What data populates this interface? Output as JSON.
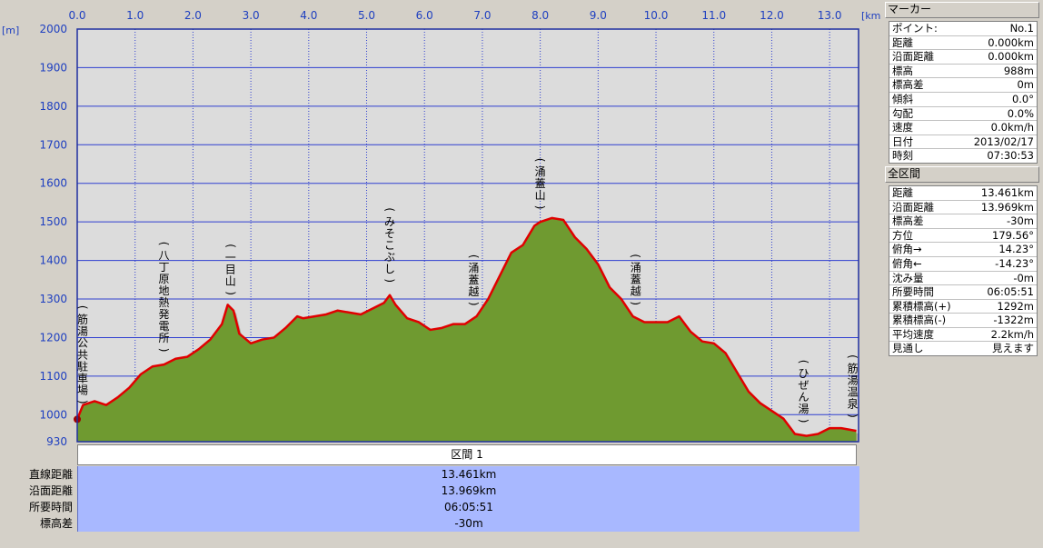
{
  "chart_data": {
    "type": "area",
    "x_unit": "[km]",
    "y_unit": "[m]",
    "xlim": [
      0,
      13.5
    ],
    "ylim": [
      930,
      2000
    ],
    "x_ticks": [
      0,
      1,
      2,
      3,
      4,
      5,
      6,
      7,
      8,
      9,
      10,
      11,
      12,
      13
    ],
    "x_tick_labels": [
      "0.0",
      "1.0",
      "2.0",
      "3.0",
      "4.0",
      "5.0",
      "6.0",
      "7.0",
      "8.0",
      "9.0",
      "10.0",
      "11.0",
      "12.0",
      "13.0"
    ],
    "y_ticks": [
      930,
      1000,
      1100,
      1200,
      1300,
      1400,
      1500,
      1600,
      1700,
      1800,
      1900,
      2000
    ],
    "y_tick_labels": [
      "930",
      "1000",
      "1100",
      "1200",
      "1300",
      "1400",
      "1500",
      "1600",
      "1700",
      "1800",
      "1900",
      "2000"
    ],
    "grid": true,
    "series": [
      {
        "color": "#e00000",
        "x": [
          0,
          0.1,
          0.3,
          0.5,
          0.7,
          0.9,
          1.1,
          1.3,
          1.5,
          1.7,
          1.9,
          2.1,
          2.3,
          2.5,
          2.6,
          2.7,
          2.8,
          3.0,
          3.2,
          3.4,
          3.6,
          3.8,
          3.9,
          4.1,
          4.3,
          4.5,
          4.7,
          4.9,
          5.1,
          5.3,
          5.4,
          5.5,
          5.7,
          5.9,
          6.1,
          6.3,
          6.5,
          6.7,
          6.9,
          7.1,
          7.3,
          7.5,
          7.7,
          7.9,
          8.0,
          8.2,
          8.4,
          8.6,
          8.8,
          9.0,
          9.2,
          9.4,
          9.6,
          9.8,
          10.0,
          10.2,
          10.4,
          10.6,
          10.8,
          11.0,
          11.2,
          11.4,
          11.6,
          11.8,
          12.0,
          12.2,
          12.4,
          12.6,
          12.8,
          13.0,
          13.2,
          13.461
        ],
        "y": [
          988,
          1025,
          1035,
          1025,
          1045,
          1070,
          1105,
          1125,
          1130,
          1145,
          1150,
          1170,
          1195,
          1235,
          1285,
          1270,
          1210,
          1185,
          1195,
          1200,
          1225,
          1255,
          1250,
          1255,
          1260,
          1270,
          1265,
          1260,
          1275,
          1290,
          1310,
          1285,
          1250,
          1240,
          1220,
          1225,
          1235,
          1235,
          1255,
          1300,
          1360,
          1420,
          1440,
          1490,
          1500,
          1510,
          1505,
          1460,
          1430,
          1390,
          1330,
          1300,
          1255,
          1240,
          1240,
          1240,
          1255,
          1215,
          1190,
          1185,
          1160,
          1110,
          1060,
          1030,
          1010,
          990,
          950,
          945,
          950,
          965,
          965,
          958
        ]
      }
    ]
  },
  "waypoints": [
    {
      "x": 0.02,
      "label": "(筋湯公共駐車場)"
    },
    {
      "x": 1.5,
      "label": "(八丁原地熱発電所)"
    },
    {
      "x": 2.65,
      "label": "(一目山)"
    },
    {
      "x": 5.4,
      "label": "(みそこぶし)"
    },
    {
      "x": 6.85,
      "label": "(涌蓋越)"
    },
    {
      "x": 8.0,
      "label": "(涌蓋山)"
    },
    {
      "x": 9.65,
      "label": "(涌蓋越)"
    },
    {
      "x": 12.55,
      "label": "(ひぜん湯)"
    },
    {
      "x": 13.4,
      "label": "(筋湯温泉)"
    }
  ],
  "section": {
    "title": "区間 1",
    "rows": [
      {
        "label": "直線距離",
        "value": "13.461km"
      },
      {
        "label": "沿面距離",
        "value": "13.969km"
      },
      {
        "label": "所要時間",
        "value": "06:05:51"
      },
      {
        "label": "標高差",
        "value": "-30m"
      }
    ]
  },
  "marker_panel": {
    "title": "マーカー",
    "rows": [
      {
        "label": "ポイント:",
        "value": "No.1"
      },
      {
        "label": "距離",
        "value": "0.000km"
      },
      {
        "label": "沿面距離",
        "value": "0.000km"
      },
      {
        "label": "標高",
        "value": "988m"
      },
      {
        "label": "標高差",
        "value": "0m"
      },
      {
        "label": "傾斜",
        "value": "0.0°"
      },
      {
        "label": "勾配",
        "value": "0.0%"
      },
      {
        "label": "速度",
        "value": "0.0km/h"
      },
      {
        "label": "日付",
        "value": "2013/02/17"
      },
      {
        "label": "時刻",
        "value": "07:30:53"
      }
    ]
  },
  "total_panel": {
    "title": "全区間",
    "rows": [
      {
        "label": "距離",
        "value": "13.461km"
      },
      {
        "label": "沿面距離",
        "value": "13.969km"
      },
      {
        "label": "標高差",
        "value": "-30m"
      },
      {
        "label": "方位",
        "value": "179.56°"
      },
      {
        "label": "俯角→",
        "value": "14.23°"
      },
      {
        "label": "俯角←",
        "value": "-14.23°"
      },
      {
        "label": "沈み量",
        "value": "-0m"
      },
      {
        "label": "所要時間",
        "value": "06:05:51"
      },
      {
        "label": "累積標高(+)",
        "value": "1292m"
      },
      {
        "label": "累積標高(-)",
        "value": "-1322m"
      },
      {
        "label": "平均速度",
        "value": "2.2km/h"
      },
      {
        "label": "見通し",
        "value": "見えます"
      }
    ]
  },
  "colors": {
    "plot_bg": "#dcdcdc",
    "grid": "#2f3fd0",
    "area": "#6f9a30",
    "shadow": "#b0b0a0",
    "line": "#e00000",
    "summary_bg": "#a8b8ff"
  }
}
